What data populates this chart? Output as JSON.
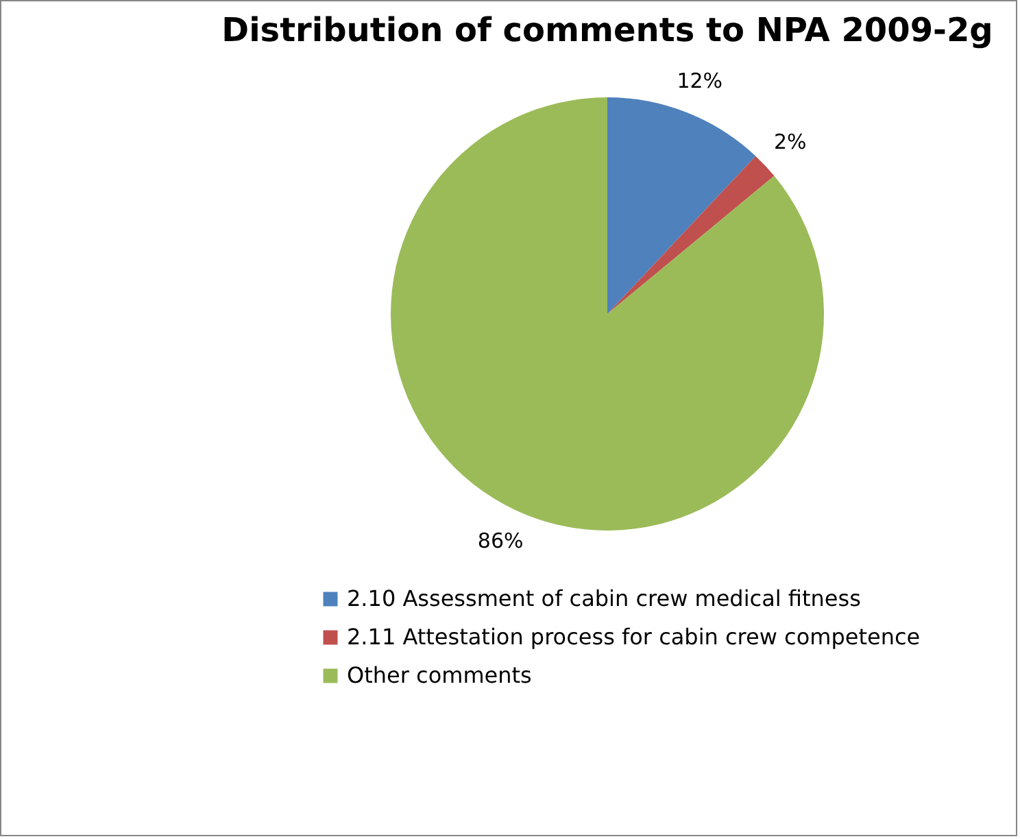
{
  "chart_data": {
    "type": "pie",
    "title": "Distribution of comments to NPA 2009-2g",
    "categories": [
      "2.10 Assessment of cabin crew medical fitness",
      "2.11 Attestation process for cabin crew competence",
      "Other comments"
    ],
    "values": [
      12,
      2,
      86
    ],
    "colors": [
      "#4f81bd",
      "#c0504d",
      "#9bbb59"
    ],
    "value_labels": [
      "12%",
      "2%",
      "86%"
    ],
    "legend": "bottom"
  }
}
